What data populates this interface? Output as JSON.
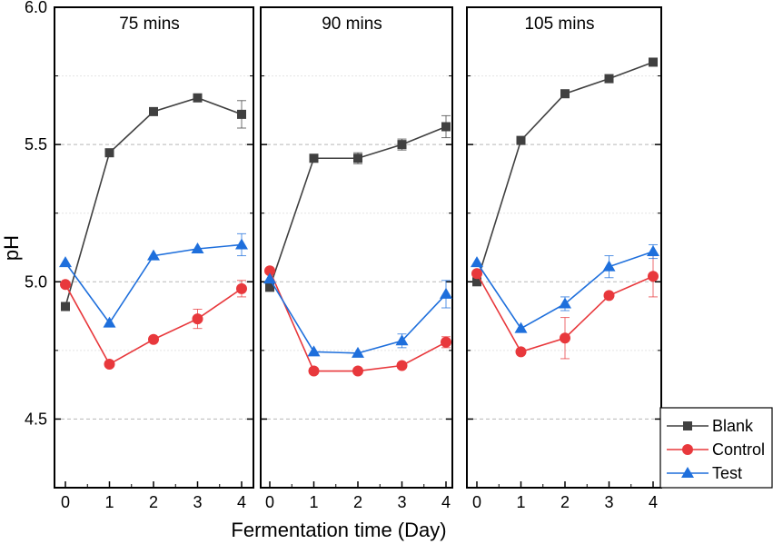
{
  "chart_data": {
    "type": "line",
    "ylabel": "pH",
    "xlabel": "Fermentation time (Day)",
    "ylim": [
      4.25,
      6.0
    ],
    "yticks": [
      "4.5",
      "5.0",
      "5.5",
      "6.0"
    ],
    "xticks": [
      "0",
      "1",
      "2",
      "3",
      "4"
    ],
    "grid": "horizontal dashed",
    "legend": "bottom-right",
    "colors": {
      "Blank": "#404040",
      "Control": "#e8383c",
      "Test": "#1e6fdc"
    },
    "panels": [
      {
        "title": "75 mins",
        "series": [
          {
            "name": "Blank",
            "x": [
              0,
              1,
              2,
              3,
              4
            ],
            "values": [
              4.91,
              5.47,
              5.62,
              5.67,
              5.61
            ],
            "errors": [
              0,
              0,
              0,
              0,
              0.05
            ]
          },
          {
            "name": "Control",
            "x": [
              0,
              1,
              2,
              3,
              4
            ],
            "values": [
              4.99,
              4.7,
              4.79,
              4.865,
              4.975
            ],
            "errors": [
              0,
              0,
              0,
              0.035,
              0.03
            ]
          },
          {
            "name": "Test",
            "x": [
              0,
              1,
              2,
              3,
              4
            ],
            "values": [
              5.07,
              4.85,
              5.095,
              5.12,
              5.135
            ],
            "errors": [
              0,
              0,
              0,
              0,
              0.04
            ]
          }
        ]
      },
      {
        "title": "90 mins",
        "series": [
          {
            "name": "Blank",
            "x": [
              0,
              1,
              2,
              3,
              4
            ],
            "values": [
              4.98,
              5.45,
              5.45,
              5.5,
              5.565
            ],
            "errors": [
              0,
              0,
              0.02,
              0.02,
              0.04
            ]
          },
          {
            "name": "Control",
            "x": [
              0,
              1,
              2,
              3,
              4
            ],
            "values": [
              5.04,
              4.675,
              4.675,
              4.695,
              4.78
            ],
            "errors": [
              0,
              0,
              0,
              0,
              0.02
            ]
          },
          {
            "name": "Test",
            "x": [
              0,
              1,
              2,
              3,
              4
            ],
            "values": [
              5.01,
              4.745,
              4.74,
              4.785,
              4.955
            ],
            "errors": [
              0,
              0,
              0,
              0.025,
              0.05
            ]
          }
        ]
      },
      {
        "title": "105 mins",
        "series": [
          {
            "name": "Blank",
            "x": [
              0,
              1,
              2,
              3,
              4
            ],
            "values": [
              5.0,
              5.515,
              5.685,
              5.74,
              5.8
            ],
            "errors": [
              0,
              0,
              0,
              0,
              0
            ]
          },
          {
            "name": "Control",
            "x": [
              0,
              1,
              2,
              3,
              4
            ],
            "values": [
              5.03,
              4.745,
              4.795,
              4.95,
              5.02
            ],
            "errors": [
              0,
              0,
              0.075,
              0,
              0.075
            ]
          },
          {
            "name": "Test",
            "x": [
              0,
              1,
              2,
              3,
              4
            ],
            "values": [
              5.07,
              4.83,
              4.92,
              5.055,
              5.11
            ],
            "errors": [
              0,
              0,
              0.025,
              0.04,
              0.025
            ]
          }
        ]
      }
    ]
  }
}
